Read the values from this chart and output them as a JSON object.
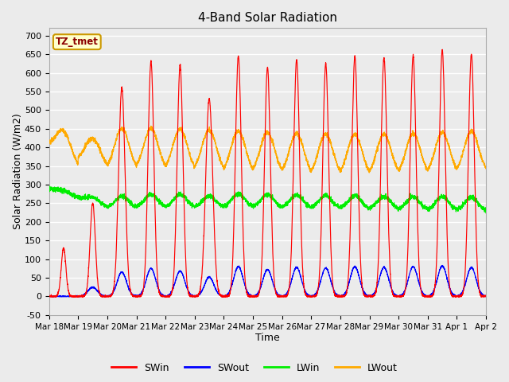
{
  "title": "4-Band Solar Radiation",
  "xlabel": "Time",
  "ylabel": "Solar Radiation (W/m2)",
  "ylim": [
    -50,
    720
  ],
  "bg_color": "#ebebeb",
  "plot_bg_color": "#ebebeb",
  "grid_color": "#ffffff",
  "colors": {
    "SWin": "#ff0000",
    "SWout": "#0000ff",
    "LWin": "#00ee00",
    "LWout": "#ffaa00"
  },
  "legend_label": "TZ_tmet",
  "x_tick_labels": [
    "Mar 18",
    "Mar 19",
    "Mar 20",
    "Mar 21",
    "Mar 22",
    "Mar 23",
    "Mar 24",
    "Mar 25",
    "Mar 26",
    "Mar 27",
    "Mar 28",
    "Mar 29",
    "Mar 30",
    "Mar 31",
    "Apr 1",
    "Apr 2"
  ],
  "n_days": 15
}
